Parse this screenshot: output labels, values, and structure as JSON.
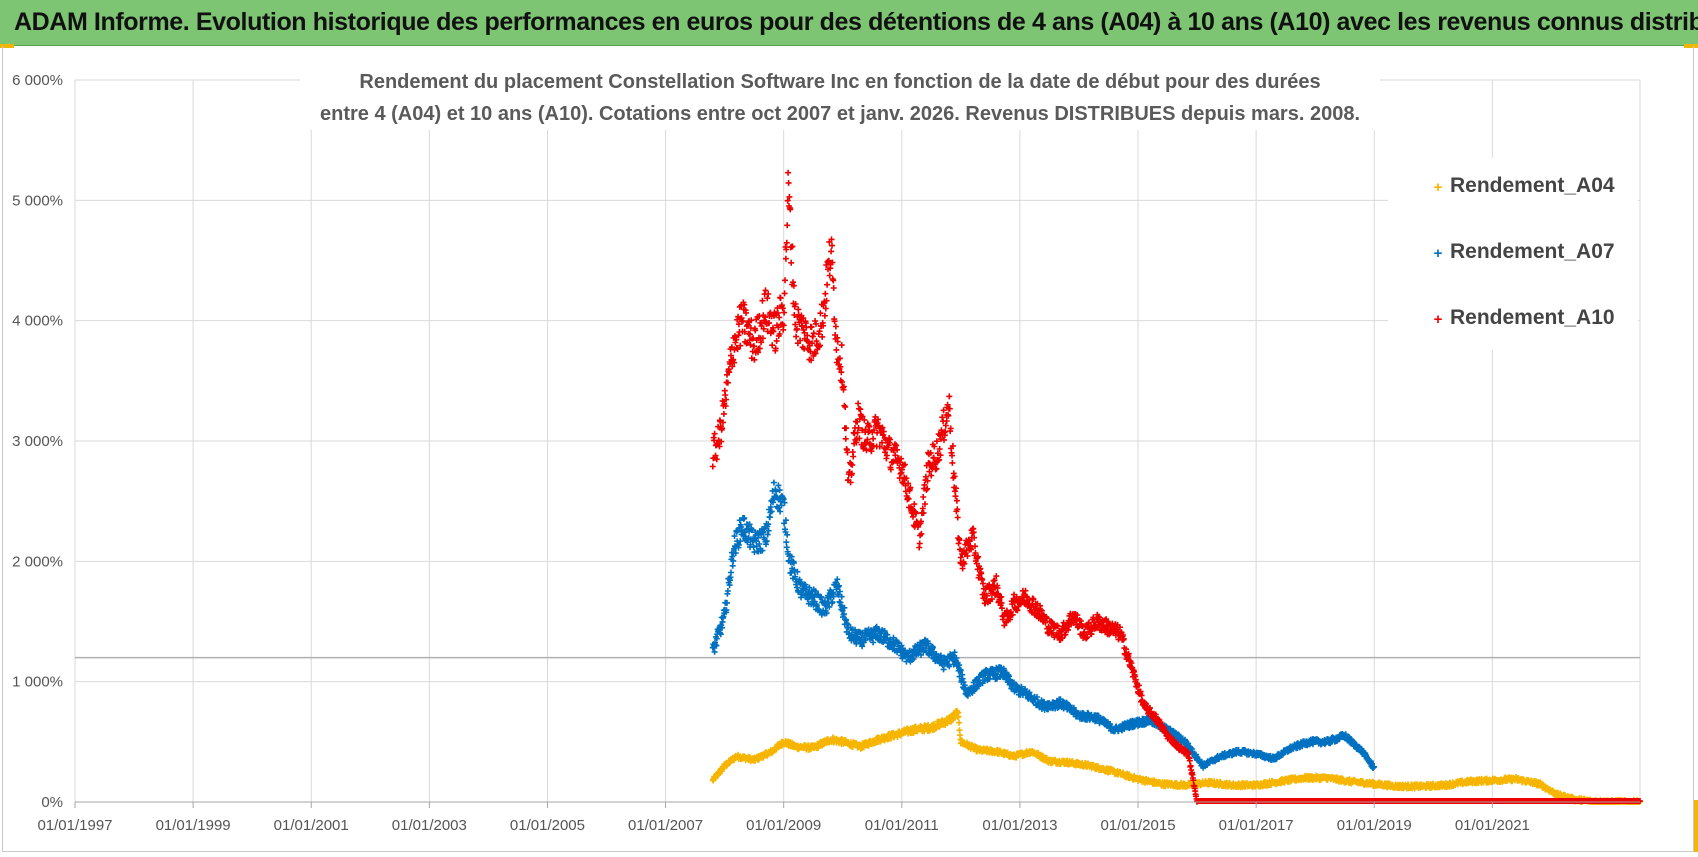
{
  "header": {
    "title": "ADAM Informe. Evolution historique des performances en euros pour des détentions de 4 ans (A04) à 10 ans (A10) avec les revenus connus distribués"
  },
  "chart_data": {
    "type": "scatter",
    "title_lines": [
      "Rendement du placement Constellation Software Inc en fonction de la date de début pour des durées",
      "entre 4 (A04) et 10 ans (A10).  Cotations entre oct 2007 et janv. 2026. Revenus DISTRIBUES depuis mars. 2008."
    ],
    "xlabel": "",
    "ylabel": "",
    "xlim": [
      1997.0,
      2023.5
    ],
    "ylim": [
      0,
      6000
    ],
    "y_ticks": [
      0,
      1000,
      2000,
      3000,
      4000,
      5000,
      6000
    ],
    "y_tick_labels": [
      "0%",
      "1 000%",
      "2 000%",
      "3 000%",
      "4 000%",
      "5 000%",
      "6 000%"
    ],
    "x_ticks": [
      1997,
      1999,
      2001,
      2003,
      2005,
      2007,
      2009,
      2011,
      2013,
      2015,
      2017,
      2019,
      2021
    ],
    "x_tick_labels": [
      "01/01/1997",
      "01/01/1999",
      "01/01/2001",
      "01/01/2003",
      "01/01/2005",
      "01/01/2007",
      "01/01/2009",
      "01/01/2011",
      "01/01/2013",
      "01/01/2015",
      "01/01/2017",
      "01/01/2019",
      "01/01/2021"
    ],
    "reference_line_y": 1200,
    "legend_position": "right",
    "colors": {
      "Rendement_A04": "#f6b500",
      "Rendement_A07": "#0070c0",
      "Rendement_A10": "#ee0000",
      "grid": "#d9d9d9",
      "reference_line": "#b0b0b0"
    },
    "series": [
      {
        "name": "Rendement_A04",
        "x": [
          2007.8,
          2008.0,
          2008.2,
          2008.5,
          2008.8,
          2009.0,
          2009.2,
          2009.5,
          2009.8,
          2010.0,
          2010.3,
          2010.6,
          2010.9,
          2011.2,
          2011.5,
          2011.8,
          2011.95,
          2012.0,
          2012.3,
          2012.6,
          2012.9,
          2013.2,
          2013.5,
          2013.8,
          2014.2,
          2014.6,
          2015.0,
          2015.4,
          2015.8,
          2016.2,
          2016.6,
          2017.0,
          2017.4,
          2017.8,
          2018.2,
          2018.6,
          2019.0,
          2019.4,
          2019.8,
          2020.2,
          2020.6,
          2021.0,
          2021.4,
          2021.8,
          2022.1,
          2022.4,
          2022.7,
          2023.0,
          2023.3,
          2023.5
        ],
        "y": [
          180,
          300,
          380,
          350,
          420,
          500,
          460,
          450,
          520,
          500,
          460,
          520,
          560,
          600,
          620,
          680,
          740,
          500,
          430,
          420,
          380,
          420,
          340,
          330,
          300,
          250,
          190,
          150,
          140,
          160,
          140,
          140,
          170,
          200,
          200,
          170,
          150,
          130,
          130,
          140,
          170,
          180,
          190,
          150,
          60,
          20,
          5,
          0,
          0,
          0
        ]
      },
      {
        "name": "Rendement_A07",
        "x": [
          2007.8,
          2007.9,
          2008.0,
          2008.15,
          2008.3,
          2008.5,
          2008.7,
          2008.85,
          2009.0,
          2009.1,
          2009.3,
          2009.5,
          2009.7,
          2009.9,
          2010.1,
          2010.3,
          2010.6,
          2010.9,
          2011.1,
          2011.4,
          2011.7,
          2011.9,
          2012.1,
          2012.4,
          2012.7,
          2012.9,
          2013.1,
          2013.4,
          2013.7,
          2014.0,
          2014.3,
          2014.6,
          2014.9,
          2015.2,
          2015.5,
          2015.8,
          2016.1,
          2016.4,
          2016.7,
          2017.0,
          2017.3,
          2017.6,
          2017.9,
          2018.2,
          2018.5,
          2018.8,
          2019.0
        ],
        "y": [
          1250,
          1400,
          1550,
          2100,
          2300,
          2150,
          2200,
          2600,
          2450,
          2000,
          1750,
          1700,
          1600,
          1800,
          1400,
          1350,
          1400,
          1300,
          1200,
          1300,
          1150,
          1200,
          900,
          1050,
          1080,
          950,
          900,
          800,
          820,
          720,
          700,
          600,
          650,
          680,
          600,
          500,
          300,
          380,
          420,
          400,
          360,
          450,
          500,
          500,
          550,
          420,
          280
        ]
      },
      {
        "name": "Rendement_A10",
        "x": [
          2007.8,
          2007.9,
          2008.0,
          2008.15,
          2008.3,
          2008.5,
          2008.7,
          2008.85,
          2009.0,
          2009.08,
          2009.12,
          2009.2,
          2009.35,
          2009.5,
          2009.65,
          2009.8,
          2009.9,
          2010.0,
          2010.1,
          2010.25,
          2010.4,
          2010.6,
          2010.8,
          2011.0,
          2011.15,
          2011.3,
          2011.45,
          2011.6,
          2011.8,
          2011.9,
          2012.0,
          2012.2,
          2012.4,
          2012.6,
          2012.75,
          2012.9,
          2013.1,
          2013.3,
          2013.5,
          2013.7,
          2013.9,
          2014.1,
          2014.3,
          2014.5,
          2014.7,
          2014.9,
          2015.1,
          2015.3,
          2015.5,
          2015.7,
          2015.85,
          2016.0
        ],
        "y": [
          2900,
          3000,
          3300,
          3800,
          4000,
          3800,
          4100,
          3900,
          4100,
          5100,
          4700,
          4000,
          3900,
          3800,
          4000,
          4600,
          3800,
          3600,
          2600,
          3200,
          3000,
          3100,
          2900,
          2800,
          2500,
          2200,
          2800,
          2900,
          3300,
          2600,
          2000,
          2200,
          1700,
          1800,
          1500,
          1650,
          1700,
          1600,
          1450,
          1400,
          1550,
          1400,
          1500,
          1450,
          1400,
          1100,
          800,
          700,
          550,
          450,
          400,
          10
        ]
      }
    ],
    "baseline_segment": {
      "series": "Rendement_A10",
      "x_start": 2016.0,
      "x_end": 2023.5,
      "y": 0
    }
  },
  "legend": {
    "items": [
      {
        "label": "Rendement_A04",
        "marker": "+",
        "color": "#f6b500"
      },
      {
        "label": "Rendement_A07",
        "marker": "+",
        "color": "#0070c0"
      },
      {
        "label": "Rendement_A10",
        "marker": "+",
        "color": "#ee0000"
      }
    ]
  }
}
